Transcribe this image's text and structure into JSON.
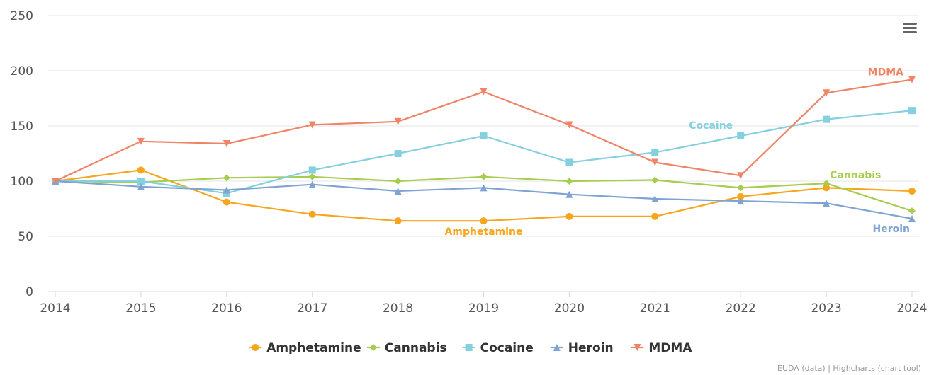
{
  "chart_data": {
    "type": "line",
    "title": "",
    "xlabel": "",
    "ylabel": "",
    "x": [
      "2014",
      "2015",
      "2016",
      "2017",
      "2018",
      "2019",
      "2020",
      "2021",
      "2022",
      "2023",
      "2024"
    ],
    "ylim": [
      0,
      250
    ],
    "yticks": [
      "0",
      "50",
      "100",
      "150",
      "200",
      "250"
    ],
    "grid": true,
    "legend_position": "bottom-center",
    "series": [
      {
        "name": "Amphetamine",
        "color": "#f7a51c",
        "marker": "circle",
        "values": [
          100,
          110,
          81,
          70,
          64,
          64,
          68,
          68,
          86,
          94,
          91
        ]
      },
      {
        "name": "Cannabis",
        "color": "#a6cd4e",
        "marker": "diamond",
        "values": [
          100,
          99,
          103,
          104,
          100,
          104,
          100,
          101,
          94,
          98,
          73
        ]
      },
      {
        "name": "Cocaine",
        "color": "#85d0de",
        "marker": "square",
        "values": [
          100,
          100,
          89,
          110,
          125,
          141,
          117,
          126,
          141,
          156,
          164
        ]
      },
      {
        "name": "Heroin",
        "color": "#7fa4d3",
        "marker": "triangle",
        "values": [
          100,
          95,
          92,
          97,
          91,
          94,
          88,
          84,
          82,
          80,
          66
        ]
      },
      {
        "name": "MDMA",
        "color": "#ef8467",
        "marker": "triangle-down",
        "values": [
          100,
          136,
          134,
          151,
          154,
          181,
          151,
          117,
          105,
          180,
          192
        ]
      }
    ],
    "annotations": [
      {
        "series": "Amphetamine",
        "text": "Amphetamine"
      },
      {
        "series": "Cannabis",
        "text": "Cannabis"
      },
      {
        "series": "Cocaine",
        "text": "Cocaine"
      },
      {
        "series": "Heroin",
        "text": "Heroin"
      },
      {
        "series": "MDMA",
        "text": "MDMA"
      }
    ]
  },
  "credits": "EUDA (data) | Highcharts (chart tool)",
  "menu": {
    "icon": "hamburger-menu-icon"
  }
}
